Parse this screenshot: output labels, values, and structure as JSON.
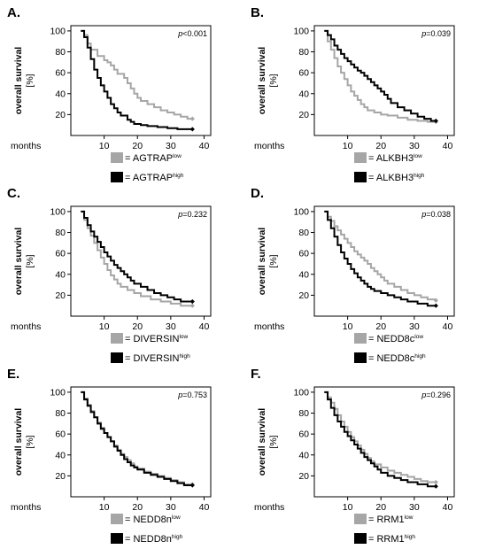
{
  "colors": {
    "low": "#a6a6a6",
    "high": "#000000"
  },
  "chart_data": [
    {
      "type": "line",
      "step": true,
      "panel": "A.",
      "ylabel": "overall survival",
      "yunit": "[%]",
      "xlabel": "months",
      "xlim": [
        0,
        42
      ],
      "ylim": [
        0,
        105
      ],
      "xticks": [
        "10",
        "20",
        "30",
        "40"
      ],
      "yticks": [
        "20",
        "40",
        "60",
        "80",
        "100"
      ],
      "p_prefix": "p",
      "p_value": "<0.001",
      "legend": [
        {
          "prefix": "= AGTRAP",
          "sup": "low"
        },
        {
          "prefix": "= AGTRAP",
          "sup": "high"
        }
      ],
      "series": [
        {
          "color": "low",
          "x": [
            3,
            4,
            5,
            6,
            8,
            10,
            11,
            12,
            13,
            14,
            16,
            17,
            18,
            19,
            20,
            21,
            23,
            25,
            27,
            29,
            31,
            33,
            35,
            36.5
          ],
          "y": [
            100,
            96,
            88,
            82,
            76,
            72,
            70,
            67,
            63,
            59,
            55,
            50,
            45,
            40,
            36,
            33,
            30,
            27,
            24,
            22,
            20,
            18,
            16,
            16
          ]
        },
        {
          "color": "high",
          "x": [
            3,
            4,
            5,
            6,
            7,
            8,
            9,
            10,
            11,
            12,
            13,
            14,
            15,
            17,
            18,
            19,
            21,
            23,
            26,
            29,
            32,
            36.5
          ],
          "y": [
            100,
            94,
            84,
            73,
            63,
            55,
            48,
            42,
            36,
            30,
            26,
            22,
            19,
            15,
            13,
            11,
            10,
            9,
            8,
            7,
            6,
            6
          ]
        }
      ]
    },
    {
      "type": "line",
      "step": true,
      "panel": "B.",
      "ylabel": "overall survival",
      "yunit": "[%]",
      "xlabel": "months",
      "xlim": [
        0,
        42
      ],
      "ylim": [
        0,
        105
      ],
      "xticks": [
        "10",
        "20",
        "30",
        "40"
      ],
      "yticks": [
        "20",
        "40",
        "60",
        "80",
        "100"
      ],
      "p_prefix": "p",
      "p_value": "=0.039",
      "legend": [
        {
          "prefix": "= ALKBH3",
          "sup": "low"
        },
        {
          "prefix": "= ALKBH3",
          "sup": "high"
        }
      ],
      "series": [
        {
          "color": "low",
          "x": [
            3,
            4,
            5,
            6,
            7,
            8,
            9,
            10,
            11,
            12,
            13,
            14,
            15,
            16,
            18,
            20,
            22,
            25,
            28,
            31,
            34,
            36.5
          ],
          "y": [
            100,
            90,
            82,
            74,
            66,
            60,
            54,
            48,
            42,
            38,
            34,
            30,
            27,
            24,
            22,
            20,
            19,
            17,
            15,
            14,
            13,
            13
          ]
        },
        {
          "color": "high",
          "x": [
            3,
            4,
            5,
            6,
            7,
            8,
            9,
            10,
            11,
            12,
            13,
            14,
            15,
            16,
            17,
            18,
            19,
            20,
            21,
            22,
            23,
            25,
            27,
            29,
            31,
            33,
            35,
            36.5
          ],
          "y": [
            100,
            96,
            92,
            86,
            82,
            78,
            74,
            71,
            68,
            65,
            62,
            60,
            57,
            54,
            51,
            48,
            45,
            42,
            39,
            35,
            31,
            27,
            24,
            21,
            18,
            16,
            14,
            14
          ]
        }
      ]
    },
    {
      "type": "line",
      "step": true,
      "panel": "C.",
      "ylabel": "overall survival",
      "yunit": "[%]",
      "xlabel": "months",
      "xlim": [
        0,
        42
      ],
      "ylim": [
        0,
        105
      ],
      "xticks": [
        "10",
        "20",
        "30",
        "40"
      ],
      "yticks": [
        "20",
        "40",
        "60",
        "80",
        "100"
      ],
      "p_prefix": "p",
      "p_value": "=0.232",
      "legend": [
        {
          "prefix": "= DIVERSIN",
          "sup": "low"
        },
        {
          "prefix": "= DIVERSIN",
          "sup": "high"
        }
      ],
      "series": [
        {
          "color": "low",
          "x": [
            3,
            4,
            5,
            6,
            7,
            8,
            9,
            10,
            11,
            12,
            13,
            14,
            15,
            17,
            19,
            21,
            24,
            27,
            30,
            33,
            36.5
          ],
          "y": [
            100,
            92,
            84,
            77,
            70,
            63,
            56,
            50,
            44,
            39,
            35,
            31,
            28,
            25,
            22,
            19,
            16,
            14,
            12,
            10,
            10
          ]
        },
        {
          "color": "high",
          "x": [
            3,
            4,
            5,
            6,
            7,
            8,
            9,
            10,
            11,
            12,
            13,
            14,
            15,
            16,
            17,
            18,
            19,
            21,
            23,
            25,
            27,
            29,
            31,
            33,
            36.5
          ],
          "y": [
            100,
            94,
            87,
            81,
            76,
            71,
            66,
            61,
            57,
            53,
            49,
            46,
            43,
            40,
            37,
            34,
            31,
            28,
            25,
            22,
            20,
            18,
            16,
            14,
            14
          ]
        }
      ]
    },
    {
      "type": "line",
      "step": true,
      "panel": "D.",
      "ylabel": "overall survival",
      "yunit": "[%]",
      "xlabel": "months",
      "xlim": [
        0,
        42
      ],
      "ylim": [
        0,
        105
      ],
      "xticks": [
        "10",
        "20",
        "30",
        "40"
      ],
      "yticks": [
        "20",
        "40",
        "60",
        "80",
        "100"
      ],
      "p_prefix": "p",
      "p_value": "=0.038",
      "legend": [
        {
          "prefix": "= NEDD8c",
          "sup": "low"
        },
        {
          "prefix": "= NEDD8c",
          "sup": "high"
        }
      ],
      "series": [
        {
          "color": "low",
          "x": [
            3,
            4,
            5,
            6,
            7,
            8,
            9,
            10,
            11,
            12,
            13,
            14,
            15,
            16,
            17,
            18,
            19,
            20,
            21,
            22,
            24,
            26,
            28,
            30,
            32,
            34,
            36.5
          ],
          "y": [
            100,
            95,
            91,
            86,
            82,
            78,
            74,
            70,
            66,
            62,
            59,
            56,
            53,
            50,
            46,
            43,
            40,
            37,
            34,
            31,
            28,
            25,
            22,
            20,
            18,
            16,
            15
          ]
        },
        {
          "color": "high",
          "x": [
            3,
            4,
            5,
            6,
            7,
            8,
            9,
            10,
            11,
            12,
            13,
            14,
            15,
            16,
            17,
            18,
            20,
            22,
            24,
            26,
            28,
            31,
            34,
            36.5
          ],
          "y": [
            100,
            92,
            84,
            76,
            68,
            61,
            55,
            50,
            45,
            41,
            37,
            34,
            31,
            28,
            26,
            24,
            22,
            20,
            18,
            16,
            14,
            12,
            10,
            10
          ]
        }
      ]
    },
    {
      "type": "line",
      "step": true,
      "panel": "E.",
      "ylabel": "overall survival",
      "yunit": "[%]",
      "xlabel": "months",
      "xlim": [
        0,
        42
      ],
      "ylim": [
        0,
        105
      ],
      "xticks": [
        "10",
        "20",
        "30",
        "40"
      ],
      "yticks": [
        "20",
        "40",
        "60",
        "80",
        "100"
      ],
      "p_prefix": "p",
      "p_value": "=0.753",
      "legend": [
        {
          "prefix": "= NEDD8n",
          "sup": "low"
        },
        {
          "prefix": "= NEDD8n",
          "sup": "high"
        }
      ],
      "series": [
        {
          "color": "low",
          "x": [
            3,
            4,
            5,
            6,
            7,
            8,
            9,
            10,
            11,
            12,
            13,
            14,
            15,
            16,
            17,
            18,
            19,
            20,
            22,
            24,
            26,
            28,
            30,
            32,
            34,
            36.5
          ],
          "y": [
            100,
            94,
            88,
            82,
            76,
            71,
            66,
            61,
            57,
            53,
            49,
            45,
            41,
            38,
            35,
            32,
            29,
            27,
            24,
            22,
            20,
            18,
            16,
            14,
            12,
            12
          ]
        },
        {
          "color": "high",
          "x": [
            3,
            4,
            5,
            6,
            7,
            8,
            9,
            10,
            11,
            12,
            13,
            14,
            15,
            16,
            17,
            18,
            19,
            20,
            22,
            24,
            26,
            28,
            30,
            32,
            34,
            36.5
          ],
          "y": [
            100,
            93,
            87,
            81,
            76,
            70,
            65,
            61,
            57,
            53,
            48,
            44,
            40,
            36,
            33,
            30,
            28,
            26,
            23,
            21,
            19,
            17,
            15,
            13,
            11,
            11
          ]
        }
      ]
    },
    {
      "type": "line",
      "step": true,
      "panel": "F.",
      "ylabel": "overall survival",
      "yunit": "[%]",
      "xlabel": "months",
      "xlim": [
        0,
        42
      ],
      "ylim": [
        0,
        105
      ],
      "xticks": [
        "10",
        "20",
        "30",
        "40"
      ],
      "yticks": [
        "20",
        "40",
        "60",
        "80",
        "100"
      ],
      "p_prefix": "p",
      "p_value": "=0.296",
      "legend": [
        {
          "prefix": "= RRM1",
          "sup": "low"
        },
        {
          "prefix": "= RRM1",
          "sup": "high"
        }
      ],
      "series": [
        {
          "color": "low",
          "x": [
            3,
            4,
            5,
            6,
            7,
            8,
            9,
            10,
            11,
            12,
            13,
            14,
            15,
            16,
            17,
            18,
            20,
            22,
            24,
            26,
            28,
            30,
            32,
            34,
            36.5
          ],
          "y": [
            100,
            95,
            90,
            84,
            78,
            72,
            67,
            62,
            57,
            53,
            49,
            45,
            41,
            37,
            34,
            31,
            28,
            25,
            23,
            21,
            19,
            17,
            15,
            14,
            14
          ]
        },
        {
          "color": "high",
          "x": [
            3,
            4,
            5,
            6,
            7,
            8,
            9,
            10,
            11,
            12,
            13,
            14,
            15,
            16,
            17,
            18,
            19,
            20,
            22,
            24,
            26,
            28,
            31,
            34,
            36.5
          ],
          "y": [
            100,
            93,
            85,
            78,
            72,
            67,
            62,
            58,
            54,
            50,
            46,
            42,
            38,
            35,
            32,
            29,
            26,
            23,
            20,
            18,
            16,
            14,
            12,
            10,
            10
          ]
        }
      ]
    }
  ]
}
